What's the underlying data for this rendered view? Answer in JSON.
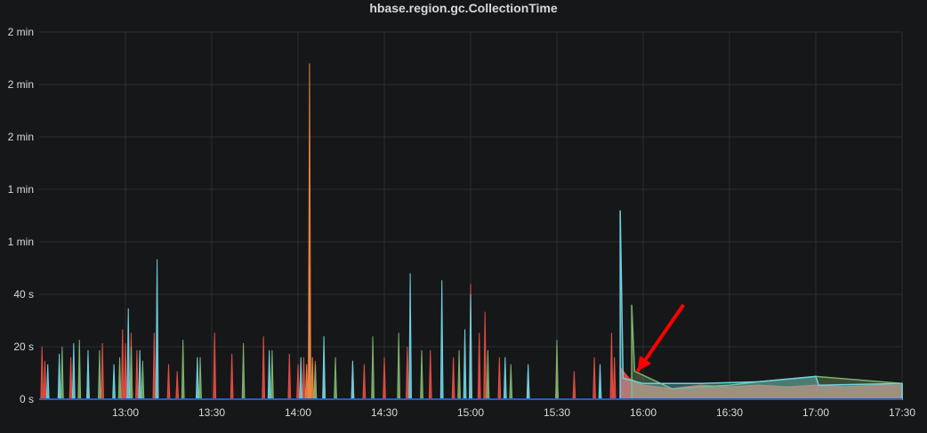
{
  "chart_data": {
    "type": "area",
    "title": "hbase.region.gc.CollectionTime",
    "xlabel": "",
    "ylabel": "",
    "ylim": [
      0,
      105
    ],
    "xlim": [
      "12:30",
      "17:30"
    ],
    "x_ticks": [
      "13:00",
      "13:30",
      "14:00",
      "14:30",
      "15:00",
      "15:30",
      "16:00",
      "16:30",
      "17:00",
      "17:30"
    ],
    "y_ticks": [
      {
        "value": 0,
        "label": "0 s"
      },
      {
        "value": 15,
        "label": "20 s"
      },
      {
        "value": 30,
        "label": "40 s"
      },
      {
        "value": 45,
        "label": "1 min"
      },
      {
        "value": 60,
        "label": "1 min"
      },
      {
        "value": 75,
        "label": "2 min"
      },
      {
        "value": 90,
        "label": "2 min"
      },
      {
        "value": 105,
        "label": "2 min"
      }
    ],
    "grid": true,
    "legend": "none",
    "series": [
      {
        "color": "#e24d42",
        "points": [
          [
            "12:31",
            15
          ],
          [
            "12:32",
            11
          ],
          [
            "12:41",
            12
          ],
          [
            "12:47",
            12
          ],
          [
            "12:52",
            16
          ],
          [
            "12:59",
            20
          ],
          [
            "13:00",
            16
          ],
          [
            "13:02",
            19
          ],
          [
            "13:04",
            14
          ],
          [
            "13:10",
            19
          ],
          [
            "13:15",
            10
          ],
          [
            "13:18",
            8
          ],
          [
            "13:31",
            19
          ],
          [
            "13:37",
            13
          ],
          [
            "13:48",
            18
          ],
          [
            "13:57",
            13
          ],
          [
            "14:00",
            10
          ],
          [
            "14:02",
            12
          ],
          [
            "14:04",
            22
          ],
          [
            "14:06",
            11
          ],
          [
            "14:09",
            13
          ],
          [
            "14:19",
            11
          ],
          [
            "14:23",
            10
          ],
          [
            "14:30",
            12
          ],
          [
            "14:38",
            15
          ],
          [
            "14:46",
            14
          ],
          [
            "14:54",
            12
          ],
          [
            "15:00",
            33
          ],
          [
            "15:03",
            19
          ],
          [
            "15:05",
            25
          ],
          [
            "15:10",
            12
          ],
          [
            "15:20",
            9
          ],
          [
            "15:30",
            11
          ],
          [
            "15:36",
            8
          ],
          [
            "15:43",
            12
          ],
          [
            "15:49",
            19
          ],
          [
            "15:50",
            12
          ],
          [
            "15:52",
            9
          ],
          [
            "15:55",
            6
          ],
          [
            "16:00",
            4
          ],
          [
            "16:10",
            3
          ],
          [
            "16:20",
            4
          ],
          [
            "16:30",
            3.5
          ],
          [
            "16:40",
            4
          ],
          [
            "16:50",
            3.5
          ],
          [
            "17:00",
            4
          ],
          [
            "17:10",
            3.5
          ],
          [
            "17:20",
            4
          ],
          [
            "17:30",
            4
          ]
        ]
      },
      {
        "color": "#7eb26d",
        "points": [
          [
            "12:38",
            15
          ],
          [
            "12:44",
            17
          ],
          [
            "12:51",
            14
          ],
          [
            "12:58",
            12
          ],
          [
            "13:02",
            15
          ],
          [
            "13:06",
            11
          ],
          [
            "13:20",
            17
          ],
          [
            "13:26",
            12
          ],
          [
            "13:41",
            16
          ],
          [
            "13:51",
            14
          ],
          [
            "14:06",
            10
          ],
          [
            "14:13",
            12
          ],
          [
            "14:26",
            18
          ],
          [
            "14:35",
            19
          ],
          [
            "14:43",
            14
          ],
          [
            "14:56",
            14
          ],
          [
            "15:06",
            14
          ],
          [
            "15:14",
            10
          ],
          [
            "15:30",
            17
          ],
          [
            "15:56",
            27
          ],
          [
            "15:57",
            8
          ],
          [
            "16:10",
            3
          ],
          [
            "16:30",
            4
          ],
          [
            "16:40",
            5
          ],
          [
            "17:00",
            6.5
          ],
          [
            "17:30",
            4.5
          ]
        ]
      },
      {
        "color": "#6ed0e0",
        "points": [
          [
            "12:33",
            10
          ],
          [
            "12:37",
            13
          ],
          [
            "12:42",
            16
          ],
          [
            "12:47",
            14
          ],
          [
            "12:56",
            10
          ],
          [
            "13:01",
            26
          ],
          [
            "13:05",
            14
          ],
          [
            "13:11",
            40
          ],
          [
            "13:25",
            12
          ],
          [
            "13:50",
            14
          ],
          [
            "14:01",
            12
          ],
          [
            "14:04",
            38
          ],
          [
            "14:09",
            18
          ],
          [
            "14:19",
            11
          ],
          [
            "14:39",
            36
          ],
          [
            "14:50",
            34
          ],
          [
            "14:58",
            20
          ],
          [
            "15:00",
            30
          ],
          [
            "15:12",
            12
          ],
          [
            "15:20",
            10
          ],
          [
            "15:45",
            10
          ],
          [
            "15:52",
            54
          ],
          [
            "15:53",
            6
          ],
          [
            "16:00",
            4.5
          ],
          [
            "16:20",
            4.5
          ],
          [
            "16:40",
            5
          ],
          [
            "17:00",
            6.5
          ],
          [
            "17:01",
            4
          ],
          [
            "17:30",
            4.5
          ]
        ]
      },
      {
        "color": "#ef843c",
        "points": [
          [
            "14:03",
            10
          ],
          [
            "14:04",
            96
          ],
          [
            "14:05",
            12
          ]
        ]
      }
    ],
    "annotations": [
      {
        "type": "arrow",
        "color": "#ff0000",
        "from": [
          "16:14",
          27
        ],
        "to": [
          "15:58",
          8
        ]
      }
    ]
  }
}
